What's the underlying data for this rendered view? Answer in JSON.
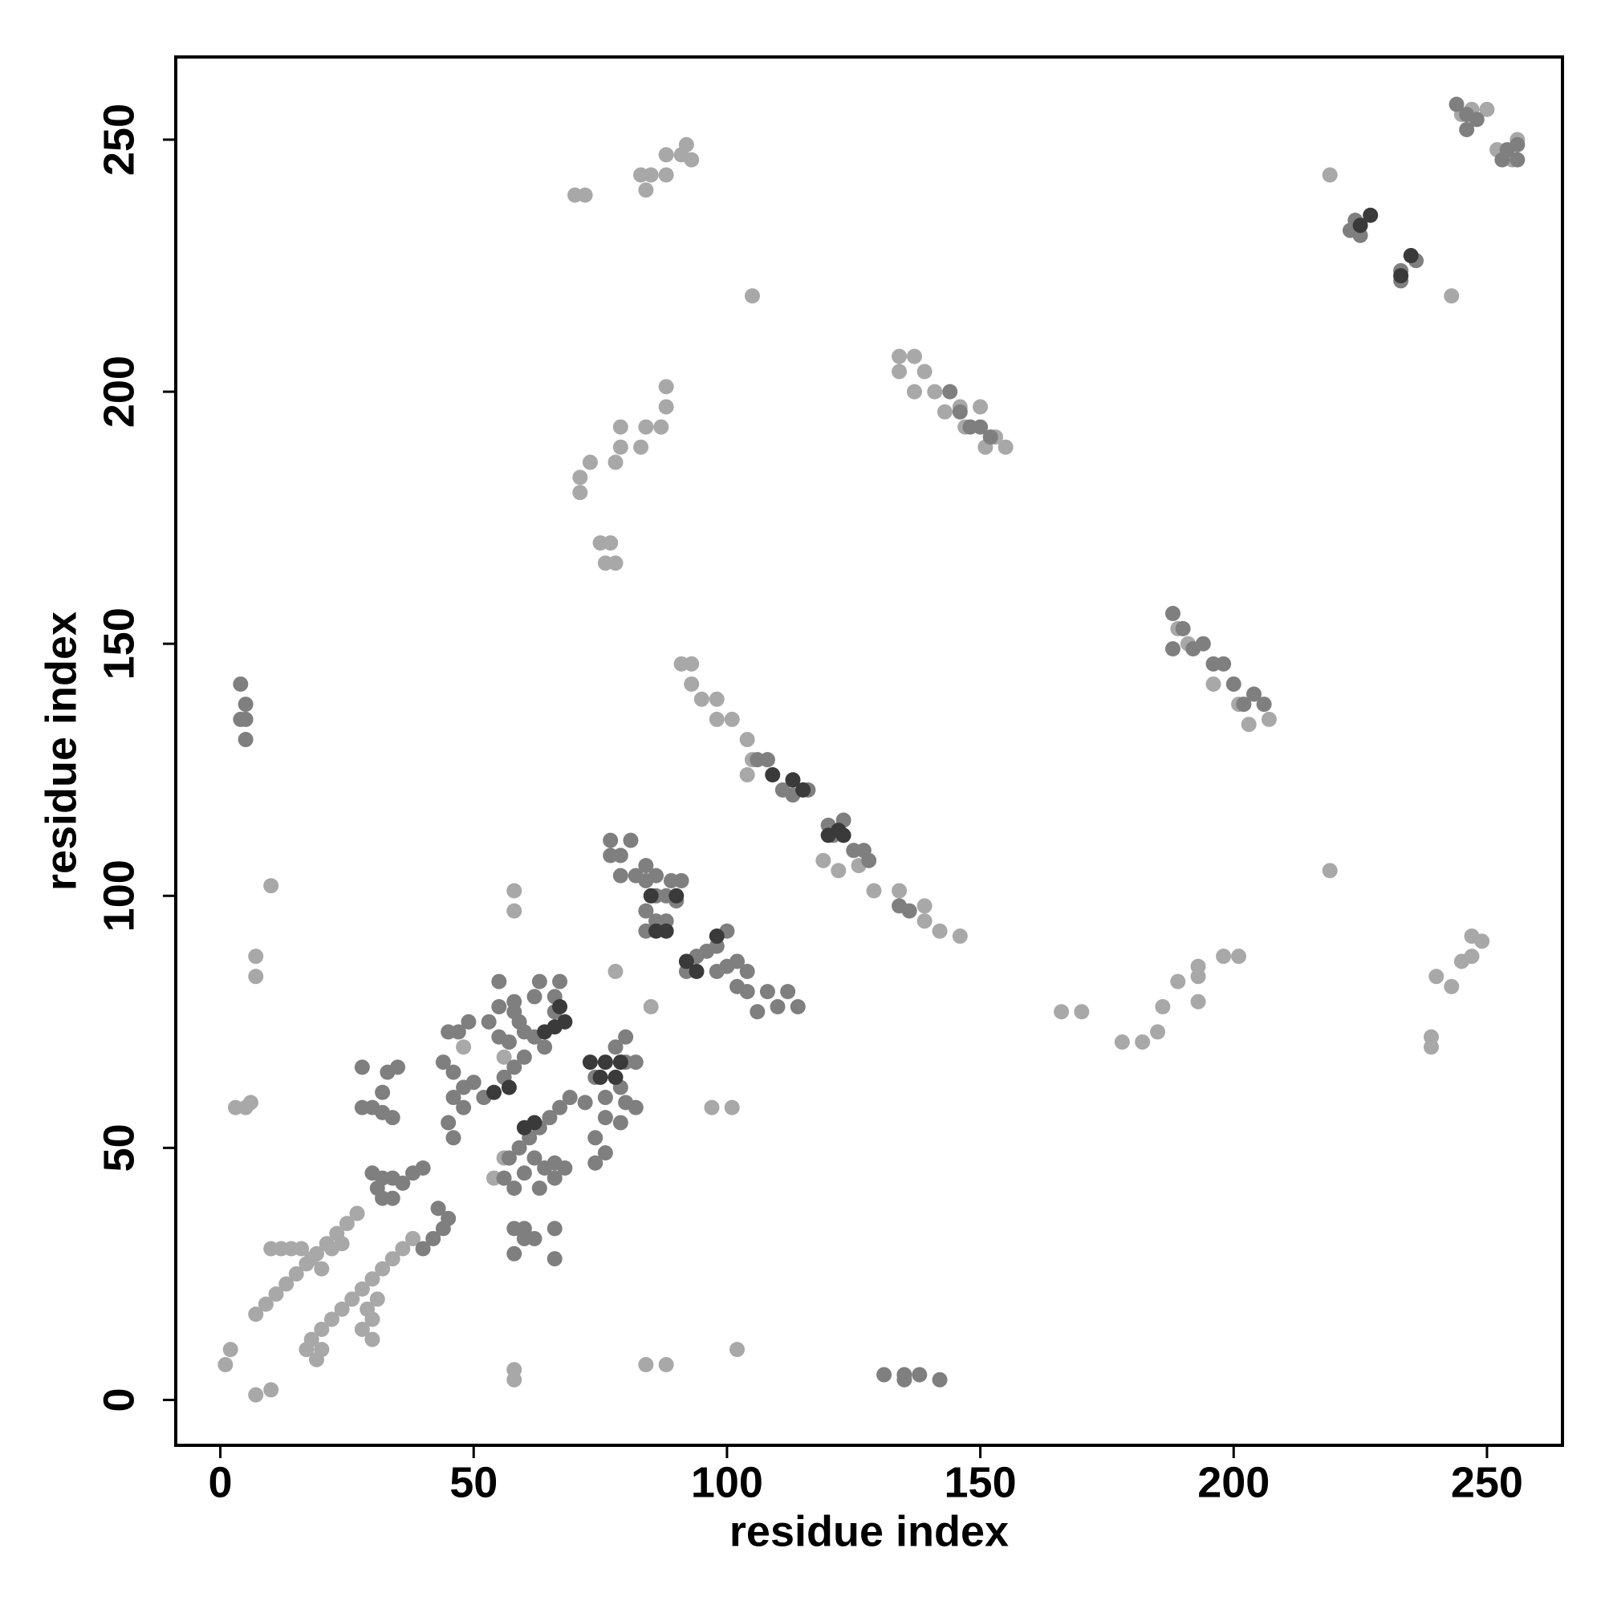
{
  "chart_data": {
    "type": "scatter",
    "x_label": "residue index",
    "y_label": "residue index",
    "xlim": [
      -8.8,
      264.9
    ],
    "ylim": [
      -9.0,
      266.4
    ],
    "xticks": [
      0,
      50,
      100,
      150,
      200,
      250
    ],
    "yticks": [
      0,
      50,
      100,
      150,
      200,
      250
    ],
    "grid": false,
    "series": [
      {
        "color": "#a8a8a8",
        "x": [
          17,
          18,
          20,
          22,
          24,
          26,
          28,
          30,
          32,
          34,
          36,
          38,
          30,
          30,
          31,
          29,
          28,
          19,
          20,
          7,
          9,
          11,
          13,
          15,
          17,
          19,
          21,
          23,
          25,
          27,
          10,
          12,
          14,
          16,
          18,
          20,
          22,
          24,
          1,
          2,
          7,
          10,
          3,
          5,
          6,
          7,
          7,
          10,
          58,
          58,
          58,
          58,
          84,
          88,
          102,
          70,
          72,
          84,
          83,
          85,
          88,
          88,
          91,
          92,
          93,
          105,
          71,
          71,
          73,
          76,
          77,
          75,
          78,
          78,
          79,
          79,
          83,
          84,
          87,
          88,
          88,
          134,
          134,
          137,
          137,
          139,
          141,
          143,
          146,
          147,
          150,
          151,
          153,
          155,
          91,
          93,
          93,
          95,
          98,
          98,
          101,
          104,
          104,
          105,
          119,
          122,
          126,
          129,
          134,
          139,
          139,
          142,
          146,
          219,
          243,
          219,
          166,
          170,
          178,
          182,
          185,
          186,
          189,
          193,
          193,
          193,
          198,
          201,
          239,
          239,
          240,
          243,
          245,
          247,
          247,
          249,
          252,
          255,
          256,
          247,
          250,
          245,
          189,
          191,
          196,
          201,
          203,
          207,
          97,
          101,
          85,
          78,
          56,
          48,
          54,
          56
        ],
        "values": [
          10,
          12,
          14,
          16,
          18,
          20,
          22,
          24,
          26,
          28,
          30,
          32,
          12,
          16,
          20,
          18,
          14,
          8,
          10,
          17,
          19,
          21,
          23,
          25,
          27,
          29,
          31,
          33,
          35,
          37,
          30,
          30,
          30,
          30,
          28,
          26,
          30,
          31,
          7,
          10,
          1,
          2,
          58,
          58,
          59,
          84,
          88,
          102,
          4,
          6,
          97,
          101,
          7,
          7,
          10,
          239,
          239,
          240,
          243,
          243,
          243,
          247,
          247,
          249,
          246,
          219,
          180,
          183,
          186,
          166,
          170,
          170,
          166,
          186,
          189,
          193,
          189,
          193,
          193,
          197,
          201,
          204,
          207,
          207,
          200,
          204,
          200,
          196,
          197,
          193,
          197,
          189,
          191,
          189,
          146,
          146,
          142,
          139,
          139,
          135,
          135,
          131,
          124,
          127,
          107,
          105,
          106,
          101,
          101,
          98,
          95,
          93,
          92,
          243,
          219,
          105,
          77,
          77,
          71,
          71,
          73,
          78,
          83,
          79,
          84,
          86,
          88,
          88,
          70,
          72,
          84,
          82,
          87,
          88,
          92,
          91,
          248,
          246,
          250,
          256,
          256,
          255,
          153,
          150,
          142,
          138,
          134,
          135,
          58,
          58,
          78,
          85,
          68,
          70,
          44,
          48
        ]
      },
      {
        "color": "#7f7f7f",
        "x": [
          4,
          5,
          5,
          5,
          4,
          131,
          135,
          135,
          138,
          142,
          44,
          46,
          46,
          45,
          46,
          48,
          48,
          50,
          45,
          47,
          49,
          53,
          55,
          55,
          58,
          62,
          63,
          55,
          57,
          58,
          59,
          60,
          62,
          64,
          66,
          67,
          66,
          52,
          56,
          58,
          60,
          28,
          28,
          30,
          32,
          32,
          33,
          34,
          35,
          30,
          32,
          34,
          36,
          38,
          40,
          32,
          34,
          31,
          60,
          62,
          64,
          66,
          63,
          66,
          68,
          56,
          58,
          57,
          59,
          61,
          63,
          65,
          67,
          69,
          58,
          60,
          58,
          60,
          62,
          66,
          66,
          74,
          74,
          76,
          76,
          79,
          80,
          79,
          80,
          76,
          72,
          74,
          78,
          80,
          82,
          82,
          40,
          42,
          44,
          43,
          45,
          77,
          79,
          77,
          79,
          81,
          82,
          84,
          84,
          86,
          86,
          88,
          89,
          91,
          84,
          84,
          86,
          88,
          90,
          92,
          94,
          96,
          98,
          98,
          100,
          100,
          102,
          102,
          104,
          104,
          106,
          108,
          110,
          112,
          114,
          106,
          108,
          111,
          113,
          116,
          120,
          123,
          121,
          125,
          127,
          128,
          134,
          136,
          188,
          188,
          190,
          192,
          194,
          196,
          198,
          200,
          202,
          204,
          206,
          144,
          146,
          148,
          150,
          152,
          224,
          223,
          225,
          233,
          233,
          236,
          244,
          246,
          248,
          246,
          254,
          256,
          256,
          253
        ],
        "values": [
          142,
          135,
          138,
          131,
          135,
          5,
          4,
          5,
          5,
          4,
          67,
          65,
          60,
          55,
          52,
          58,
          62,
          63,
          73,
          73,
          75,
          75,
          78,
          83,
          79,
          80,
          83,
          72,
          71,
          77,
          75,
          73,
          72,
          70,
          77,
          83,
          80,
          60,
          64,
          66,
          68,
          66,
          58,
          58,
          57,
          61,
          65,
          56,
          66,
          45,
          44,
          44,
          43,
          45,
          46,
          40,
          40,
          42,
          45,
          48,
          46,
          44,
          42,
          47,
          46,
          44,
          42,
          48,
          50,
          52,
          54,
          56,
          58,
          60,
          34,
          34,
          29,
          32,
          32,
          34,
          28,
          47,
          52,
          49,
          56,
          55,
          59,
          62,
          67,
          60,
          59,
          64,
          70,
          72,
          58,
          67,
          30,
          32,
          34,
          38,
          36,
          108,
          108,
          111,
          104,
          111,
          104,
          103,
          106,
          100,
          104,
          100,
          103,
          103,
          97,
          93,
          95,
          95,
          99,
          85,
          88,
          89,
          90,
          85,
          93,
          86,
          82,
          87,
          81,
          85,
          77,
          81,
          78,
          81,
          78,
          127,
          127,
          121,
          120,
          121,
          114,
          115,
          112,
          109,
          109,
          107,
          98,
          97,
          156,
          149,
          153,
          149,
          150,
          146,
          146,
          142,
          138,
          140,
          138,
          200,
          196,
          193,
          193,
          191,
          234,
          232,
          231,
          224,
          222,
          226,
          257,
          255,
          254,
          252,
          248,
          246,
          249,
          246
        ]
      },
      {
        "color": "#3a3a3a",
        "x": [
          54,
          57,
          60,
          62,
          64,
          66,
          67,
          68,
          73,
          76,
          79,
          78,
          75,
          86,
          88,
          90,
          92,
          94,
          109,
          113,
          115,
          120,
          122,
          123,
          227,
          225,
          235,
          233,
          98,
          85
        ],
        "values": [
          61,
          62,
          54,
          55,
          73,
          74,
          78,
          75,
          67,
          67,
          67,
          64,
          64,
          93,
          93,
          100,
          87,
          85,
          124,
          123,
          121,
          112,
          113,
          112,
          235,
          233,
          227,
          223,
          92,
          100
        ]
      }
    ]
  }
}
